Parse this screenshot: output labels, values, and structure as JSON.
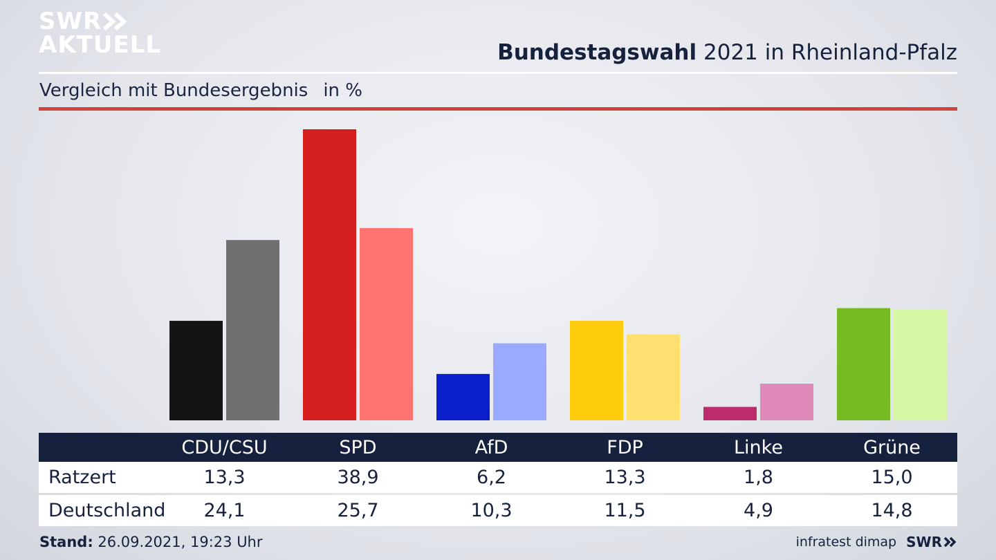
{
  "branding": {
    "logo_line1": "SWR",
    "logo_line2": "AKTUELL",
    "footer_logo": "SWR",
    "logo_color": "#ffffff"
  },
  "header": {
    "title_bold": "Bundestagswahl",
    "title_rest": "2021 in Rheinland-Pfalz",
    "subtitle": "Vergleich mit Bundesergebnis",
    "unit": "in %"
  },
  "footer": {
    "stand_label": "Stand:",
    "stand_value": "26.09.2021, 19:23 Uhr",
    "source": "infratest dimap"
  },
  "chart_data": {
    "type": "bar",
    "categories": [
      "CDU/CSU",
      "SPD",
      "AfD",
      "FDP",
      "Linke",
      "Grüne"
    ],
    "series": [
      {
        "name": "Ratzert",
        "values": [
          13.3,
          38.9,
          6.2,
          13.3,
          1.8,
          15.0
        ],
        "colors": [
          "#141414",
          "#d61f1f",
          "#0a1ecc",
          "#fdcc0d",
          "#bd2b6c",
          "#76bb21"
        ]
      },
      {
        "name": "Deutschland",
        "values": [
          24.1,
          25.7,
          10.3,
          11.5,
          4.9,
          14.8
        ],
        "colors": [
          "#72706e",
          "#ff7470",
          "#9aaafe",
          "#fde070",
          "#e08ab9",
          "#d7f7a4"
        ]
      }
    ],
    "value_labels": [
      [
        "13,3",
        "38,9",
        "6,2",
        "13,3",
        "1,8",
        "15,0"
      ],
      [
        "24,1",
        "25,7",
        "10,3",
        "11,5",
        "4,9",
        "14,8"
      ]
    ],
    "ylim": [
      0,
      38.9
    ],
    "grid": false,
    "legend": "table-below"
  }
}
